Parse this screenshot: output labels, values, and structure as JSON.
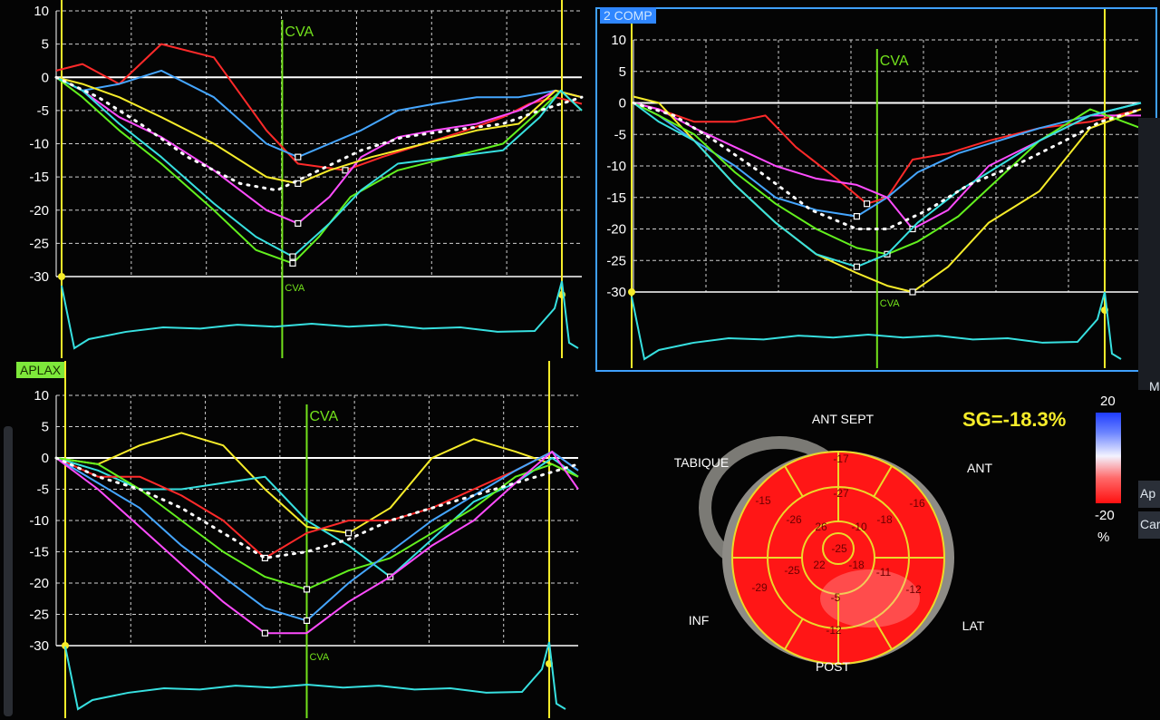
{
  "colors": {
    "red": "#ff2a2a",
    "blue": "#45a6ff",
    "magenta": "#ff4cff",
    "yellow": "#f6ec2a",
    "green": "#63f01e",
    "cyan": "#37e0e0",
    "white": "#ffffff",
    "avc": "#73e21c",
    "frame": "#3fa0ff"
  },
  "panel_labels": {
    "top_right": "2 COMP",
    "bottom_left": "APLAX"
  },
  "bullseye": {
    "title": "SG=-18.3%",
    "labels": {
      "top": "ANT SEPT",
      "left": "TABIQUE",
      "right": "ANT",
      "lower_left": "INF",
      "lower_right": "LAT",
      "bottom": "POST"
    },
    "segments": {
      "basal": [
        "-17",
        "-16",
        "-12",
        "-12",
        "-29",
        "-15"
      ],
      "mid": [
        "-27",
        "-18",
        "-11",
        "-5",
        "-25",
        "-26"
      ],
      "apical": [
        "-10",
        "-18",
        "22",
        "26"
      ],
      "apex": "-25"
    }
  },
  "color_scale": {
    "max": "20",
    "min": "-20",
    "unit": "%"
  },
  "right_edge_text": [
    "Ap",
    "Car",
    "M"
  ],
  "chart_data": [
    {
      "type": "line",
      "panel": "top-left",
      "xlim": [
        0,
        100
      ],
      "ylim": [
        -30,
        10
      ],
      "yticks": [
        "10",
        "5",
        "0",
        "-5",
        "-10",
        "-15",
        "-20",
        "-25",
        "-30"
      ],
      "avc_marker": {
        "x": 43,
        "label": "CVA",
        "label_bottom": "CVA"
      },
      "series": [
        {
          "color": "red",
          "x": [
            0,
            5,
            12,
            20,
            30,
            40,
            46,
            55,
            62,
            70,
            78,
            85,
            90,
            95,
            100
          ],
          "y": [
            1,
            2,
            -1,
            5,
            3,
            -8,
            -13,
            -14,
            -12,
            -10,
            -8,
            -6,
            -4,
            -3,
            -4
          ]
        },
        {
          "color": "blue",
          "x": [
            0,
            5,
            12,
            20,
            30,
            40,
            46,
            52,
            58,
            65,
            72,
            80,
            88,
            95,
            100
          ],
          "y": [
            0,
            -2,
            -1,
            1,
            -3,
            -10,
            -12,
            -10,
            -8,
            -5,
            -4,
            -3,
            -3,
            -2,
            -3
          ]
        },
        {
          "color": "magenta",
          "x": [
            0,
            5,
            12,
            20,
            30,
            40,
            46,
            52,
            58,
            65,
            72,
            80,
            88,
            95,
            100
          ],
          "y": [
            0,
            -2,
            -6,
            -9,
            -14,
            -20,
            -22,
            -18,
            -12,
            -9,
            -8,
            -7,
            -5,
            -2,
            -3
          ]
        },
        {
          "color": "yellow",
          "x": [
            0,
            5,
            12,
            20,
            30,
            40,
            46,
            52,
            60,
            70,
            80,
            88,
            95,
            100
          ],
          "y": [
            0,
            -1,
            -3,
            -6,
            -10,
            -15,
            -16,
            -14,
            -12,
            -10,
            -8,
            -7,
            -2,
            -3
          ]
        },
        {
          "color": "green",
          "x": [
            0,
            5,
            12,
            20,
            30,
            38,
            45,
            50,
            56,
            65,
            75,
            85,
            92,
            96,
            100
          ],
          "y": [
            0,
            -3,
            -8,
            -13,
            -20,
            -26,
            -28,
            -24,
            -18,
            -14,
            -12,
            -10,
            -5,
            -2,
            -5
          ]
        },
        {
          "color": "cyan",
          "x": [
            0,
            5,
            12,
            20,
            30,
            38,
            45,
            52,
            58,
            65,
            75,
            85,
            92,
            96,
            100
          ],
          "y": [
            0,
            -2,
            -7,
            -12,
            -19,
            -24,
            -27,
            -22,
            -17,
            -13,
            -12,
            -11,
            -6,
            -2,
            -5
          ]
        },
        {
          "color": "white",
          "dashed": true,
          "x": [
            0,
            8,
            16,
            25,
            35,
            42,
            50,
            58,
            66,
            75,
            85,
            92,
            100
          ],
          "y": [
            0,
            -3,
            -7,
            -12,
            -16,
            -17,
            -14,
            -11,
            -9,
            -8,
            -7,
            -5,
            -3
          ]
        }
      ],
      "ecg": true
    },
    {
      "type": "line",
      "panel": "top-right",
      "xlim": [
        0,
        100
      ],
      "ylim": [
        -30,
        10
      ],
      "yticks": [
        "10",
        "5",
        "0",
        "-5",
        "-10",
        "-15",
        "-20",
        "-25",
        "-30"
      ],
      "avc_marker": {
        "x": 48,
        "label": "CVA",
        "label_bottom": "CVA"
      },
      "series": [
        {
          "color": "red",
          "x": [
            0,
            5,
            12,
            20,
            26,
            32,
            40,
            46,
            50,
            55,
            62,
            70,
            80,
            90,
            100
          ],
          "y": [
            0,
            -1,
            -3,
            -3,
            -2,
            -7,
            -12,
            -16,
            -15,
            -9,
            -8,
            -6,
            -4,
            -3,
            -1
          ]
        },
        {
          "color": "blue",
          "x": [
            0,
            5,
            12,
            20,
            28,
            36,
            44,
            50,
            56,
            64,
            72,
            80,
            90,
            100
          ],
          "y": [
            0,
            -2,
            -6,
            -10,
            -15,
            -17,
            -18,
            -15,
            -11,
            -8,
            -6,
            -4,
            -2,
            0
          ]
        },
        {
          "color": "magenta",
          "x": [
            0,
            5,
            12,
            20,
            28,
            36,
            44,
            50,
            55,
            62,
            70,
            80,
            90,
            100
          ],
          "y": [
            0,
            -1,
            -4,
            -7,
            -10,
            -12,
            -13,
            -15,
            -20,
            -17,
            -10,
            -6,
            -2,
            -2
          ]
        },
        {
          "color": "yellow",
          "x": [
            0,
            5,
            12,
            20,
            28,
            36,
            44,
            50,
            55,
            62,
            70,
            80,
            90,
            100
          ],
          "y": [
            1,
            0,
            -6,
            -13,
            -19,
            -24,
            -27,
            -29,
            -30,
            -26,
            -19,
            -14,
            -4,
            -1
          ]
        },
        {
          "color": "green",
          "x": [
            0,
            5,
            12,
            20,
            28,
            36,
            44,
            50,
            56,
            64,
            72,
            80,
            90,
            100
          ],
          "y": [
            0,
            -2,
            -5,
            -11,
            -16,
            -20,
            -23,
            -24,
            -22,
            -18,
            -12,
            -6,
            -1,
            -4
          ]
        },
        {
          "color": "cyan",
          "x": [
            0,
            5,
            12,
            20,
            28,
            36,
            44,
            50,
            56,
            64,
            72,
            80,
            90,
            100
          ],
          "y": [
            0,
            -3,
            -6,
            -13,
            -19,
            -24,
            -26,
            -24,
            -19,
            -14,
            -10,
            -6,
            -2,
            0
          ]
        },
        {
          "color": "white",
          "dashed": true,
          "x": [
            0,
            8,
            16,
            25,
            35,
            44,
            50,
            58,
            66,
            75,
            85,
            92,
            100
          ],
          "y": [
            0,
            -2,
            -6,
            -11,
            -17,
            -20,
            -20,
            -17,
            -13,
            -10,
            -6,
            -3,
            -1
          ]
        }
      ],
      "ecg": true
    },
    {
      "type": "line",
      "panel": "bottom-left",
      "xlim": [
        0,
        100
      ],
      "ylim": [
        -30,
        10
      ],
      "yticks": [
        "10",
        "5",
        "0",
        "-5",
        "-10",
        "-15",
        "-20",
        "-25",
        "-30"
      ],
      "avc_marker": {
        "x": 48,
        "label": "CVA",
        "label_bottom": "CVA"
      },
      "series": [
        {
          "color": "yellow",
          "x": [
            0,
            8,
            16,
            24,
            32,
            40,
            48,
            56,
            64,
            72,
            80,
            88,
            95,
            100
          ],
          "y": [
            0,
            -1,
            2,
            4,
            2,
            -5,
            -11,
            -12,
            -8,
            0,
            3,
            1,
            -1,
            -3
          ]
        },
        {
          "color": "cyan",
          "x": [
            0,
            8,
            16,
            24,
            32,
            40,
            48,
            56,
            64,
            72,
            80,
            88,
            95,
            100
          ],
          "y": [
            0,
            -2,
            -5,
            -5,
            -4,
            -3,
            -10,
            -14,
            -19,
            -13,
            -7,
            -4,
            0,
            -3
          ]
        },
        {
          "color": "red",
          "x": [
            0,
            8,
            16,
            24,
            32,
            40,
            48,
            56,
            64,
            72,
            80,
            88,
            95,
            100
          ],
          "y": [
            0,
            -3,
            -3,
            -6,
            -10,
            -16,
            -12,
            -10,
            -10,
            -8,
            -5,
            -2,
            1,
            -2
          ]
        },
        {
          "color": "green",
          "x": [
            0,
            8,
            16,
            24,
            32,
            40,
            48,
            56,
            64,
            72,
            80,
            88,
            95,
            100
          ],
          "y": [
            0,
            -1,
            -5,
            -10,
            -15,
            -19,
            -21,
            -18,
            -16,
            -12,
            -8,
            -3,
            -1,
            -3
          ]
        },
        {
          "color": "blue",
          "x": [
            0,
            8,
            16,
            24,
            32,
            40,
            48,
            56,
            64,
            72,
            80,
            88,
            95,
            100
          ],
          "y": [
            0,
            -4,
            -8,
            -14,
            -19,
            -24,
            -26,
            -20,
            -15,
            -10,
            -6,
            -2,
            1,
            -2
          ]
        },
        {
          "color": "magenta",
          "x": [
            0,
            8,
            16,
            24,
            32,
            40,
            48,
            56,
            64,
            72,
            80,
            88,
            95,
            100
          ],
          "y": [
            0,
            -5,
            -11,
            -17,
            -23,
            -28,
            -28,
            -23,
            -19,
            -14,
            -10,
            -4,
            1,
            -5
          ]
        },
        {
          "color": "white",
          "dashed": true,
          "x": [
            0,
            8,
            16,
            24,
            32,
            40,
            48,
            56,
            64,
            72,
            80,
            88,
            100
          ],
          "y": [
            0,
            -3,
            -5,
            -8,
            -12,
            -16,
            -15,
            -13,
            -10,
            -8,
            -6,
            -4,
            -1
          ]
        }
      ],
      "ecg": true
    }
  ]
}
